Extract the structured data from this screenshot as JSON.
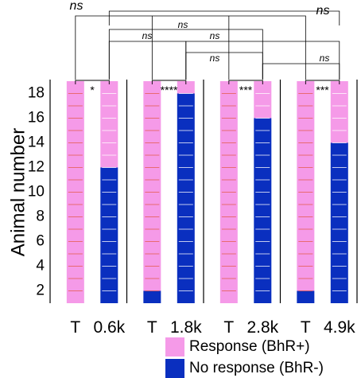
{
  "chart_data": {
    "type": "bar",
    "ylabel": "Animal number",
    "yticks": [
      2,
      4,
      6,
      8,
      10,
      12,
      14,
      16,
      18
    ],
    "ylim": [
      0,
      18
    ],
    "groups": [
      {
        "name": "0.6k",
        "significance": "*",
        "bars": [
          {
            "label": "T",
            "response": 18,
            "no_response": 0
          },
          {
            "label": "0.6k",
            "response": 7,
            "no_response": 11
          }
        ]
      },
      {
        "name": "1.8k",
        "significance": "****",
        "bars": [
          {
            "label": "T",
            "response": 17,
            "no_response": 1
          },
          {
            "label": "1.8k",
            "response": 1,
            "no_response": 17
          }
        ]
      },
      {
        "name": "2.8k",
        "significance": "***",
        "bars": [
          {
            "label": "T",
            "response": 18,
            "no_response": 0
          },
          {
            "label": "2.8k",
            "response": 3,
            "no_response": 15
          }
        ]
      },
      {
        "name": "4.9k",
        "significance": "***",
        "bars": [
          {
            "label": "T",
            "response": 17,
            "no_response": 1
          },
          {
            "label": "4.9k",
            "response": 5,
            "no_response": 13
          }
        ]
      }
    ],
    "comparisons": [
      {
        "from": "0.6k",
        "to": "4.9k",
        "label": "ns"
      },
      {
        "from": "T",
        "to": "T",
        "label": "ns",
        "scope": "all T bars"
      },
      {
        "from": "0.6k",
        "to": "2.8k",
        "label": "ns"
      },
      {
        "from": "0.6k",
        "to": "1.8k",
        "label": "ns"
      },
      {
        "from": "1.8k",
        "to": "4.9k",
        "label": "ns"
      },
      {
        "from": "1.8k",
        "to": "2.8k",
        "label": "ns"
      },
      {
        "from": "2.8k",
        "to": "4.9k",
        "label": "ns"
      }
    ],
    "legend": {
      "placement": "bottom-right",
      "items": [
        {
          "label": "Response (BhR+)",
          "color": "#f59ae8"
        },
        {
          "label": "No response (BhR-)",
          "color": "#0a2fbf"
        }
      ]
    },
    "colors": {
      "response": "#f59ae8",
      "no_response": "#0a2fbf",
      "stripe_T": "#e35a4a",
      "stripe_test": "#ffffff"
    }
  }
}
